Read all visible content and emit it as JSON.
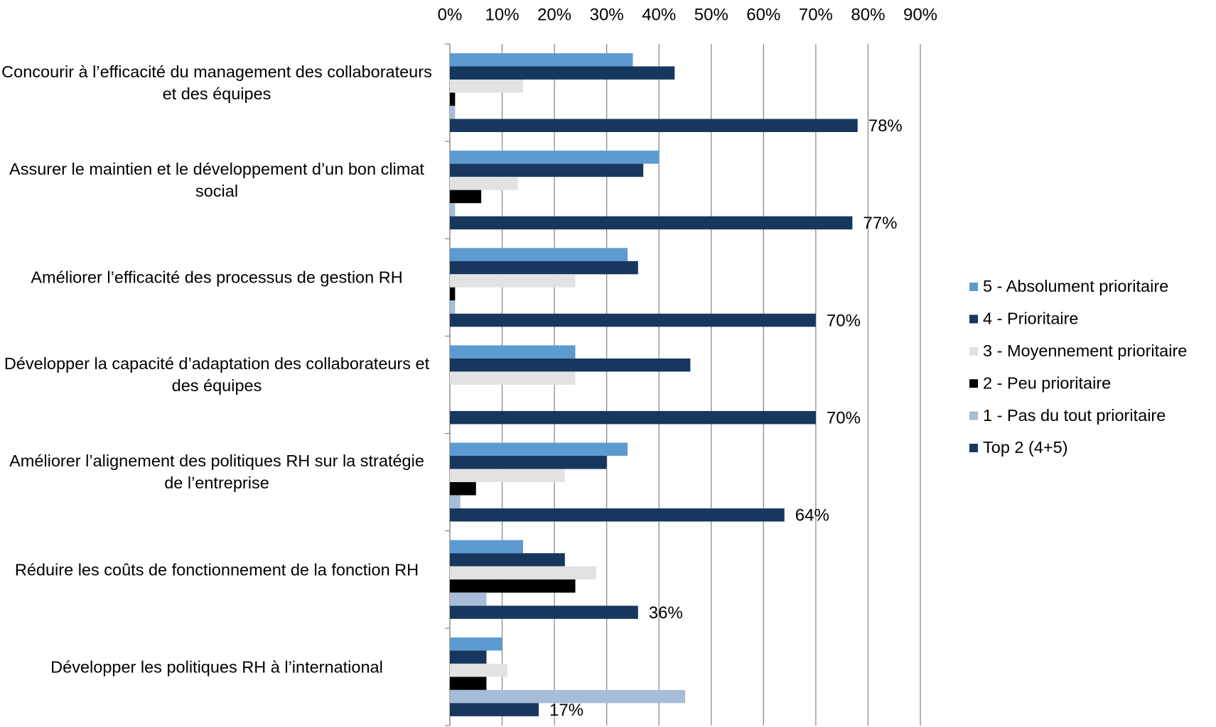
{
  "chart_data": {
    "type": "hbar",
    "categories": [
      "Concourir à l’efficacité du management des collaborateurs et des équipes",
      "Assurer le maintien et le développement d’un bon climat social",
      "Améliorer l’efficacité des processus de gestion RH",
      "Développer la capacité d’adaptation des collaborateurs et des équipes",
      "Améliorer l’alignement des politiques RH sur la stratégie de l’entreprise",
      "Réduire les coûts de fonctionnement de la fonction RH",
      "Développer les  politiques RH à l’international"
    ],
    "series": [
      {
        "name": "5 - Absolument prioritaire",
        "color": "#5b9bd0",
        "values": [
          35,
          40,
          34,
          24,
          34,
          14,
          10
        ]
      },
      {
        "name": "4 - Prioritaire",
        "color": "#17375e",
        "values": [
          43,
          37,
          36,
          46,
          30,
          22,
          7
        ]
      },
      {
        "name": "3 - Moyennement prioritaire",
        "color": "#e2e2e2",
        "values": [
          14,
          13,
          24,
          24,
          22,
          28,
          11
        ]
      },
      {
        "name": "2 - Peu prioritaire",
        "color": "#000000",
        "values": [
          1,
          6,
          1,
          0,
          5,
          24,
          7
        ]
      },
      {
        "name": "1 - Pas du tout prioritaire",
        "color": "#a7bcd8",
        "values": [
          1,
          1,
          1,
          0,
          2,
          7,
          45
        ]
      },
      {
        "name": "Top 2 (4+5)",
        "color": "#17375e",
        "values": [
          78,
          77,
          70,
          70,
          64,
          36,
          17
        ],
        "value_labels": [
          "78%",
          "77%",
          "70%",
          "70%",
          "64%",
          "36%",
          "17%"
        ]
      }
    ],
    "xlim": [
      0,
      90
    ],
    "xticks": [
      {
        "value": 0,
        "label": "0%"
      },
      {
        "value": 10,
        "label": "10%"
      },
      {
        "value": 20,
        "label": "20%"
      },
      {
        "value": 30,
        "label": "30%"
      },
      {
        "value": 40,
        "label": "40%"
      },
      {
        "value": 50,
        "label": "50%"
      },
      {
        "value": 60,
        "label": "60%"
      },
      {
        "value": 70,
        "label": "70%"
      },
      {
        "value": 80,
        "label": "80%"
      },
      {
        "value": 90,
        "label": "90%"
      }
    ],
    "grid": true,
    "legend": "right"
  }
}
